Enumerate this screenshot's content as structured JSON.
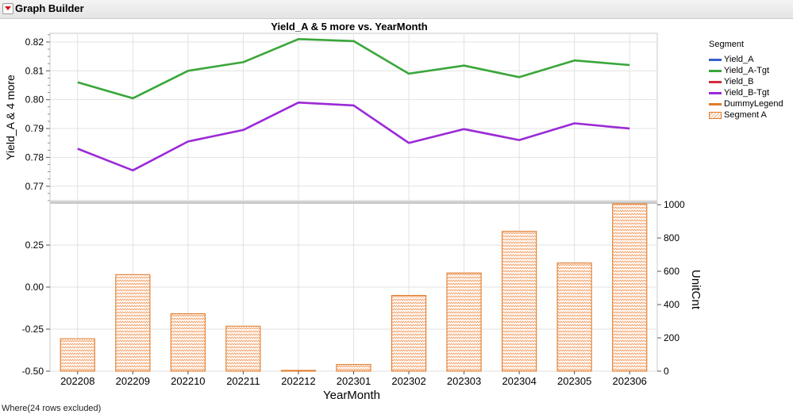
{
  "window": {
    "title": "Graph Builder"
  },
  "footer": {
    "note": "Where(24 rows excluded)"
  },
  "legend": {
    "title": "Segment",
    "items": [
      {
        "label": "Yield_A",
        "color": "#3a5fcd",
        "kind": "line"
      },
      {
        "label": "Yield_A-Tgt",
        "color": "#3aa63a",
        "kind": "line"
      },
      {
        "label": "Yield_B",
        "color": "#d62a3e",
        "kind": "line"
      },
      {
        "label": "Yield_B-Tgt",
        "color": "#9b2ad6",
        "kind": "line"
      },
      {
        "label": "DummyLegend",
        "color": "#e07b2a",
        "kind": "line"
      },
      {
        "label": "Segment A",
        "color": "#e07b2a",
        "kind": "patch"
      }
    ]
  },
  "chart_data": [
    {
      "type": "line",
      "title": "Yield_A & 5 more vs. YearMonth",
      "ylabel": "Yield_A & 4 more",
      "categories": [
        "202208",
        "202209",
        "202210",
        "202211",
        "202212",
        "202301",
        "202302",
        "202303",
        "202304",
        "202305",
        "202306"
      ],
      "ylim": [
        0.765,
        0.823
      ],
      "yticks": [
        "0.82",
        "0.81",
        "0.80",
        "0.79",
        "0.78",
        "0.77"
      ],
      "series": [
        {
          "name": "Yield_A-Tgt",
          "color": "#3aa63a",
          "values": [
            0.806,
            0.8005,
            0.81,
            0.813,
            0.821,
            0.8203,
            0.809,
            0.8118,
            0.8078,
            0.8136,
            0.812
          ]
        },
        {
          "name": "Yield_B-Tgt",
          "color": "#9b2ad6",
          "values": [
            0.783,
            0.7755,
            0.7855,
            0.7895,
            0.799,
            0.798,
            0.785,
            0.7898,
            0.786,
            0.7918,
            0.79
          ]
        }
      ],
      "grid": true
    },
    {
      "type": "bar",
      "xlabel": "YearMonth",
      "categories": [
        "202208",
        "202209",
        "202210",
        "202211",
        "202212",
        "202301",
        "202302",
        "202303",
        "202304",
        "202305",
        "202306"
      ],
      "series": [
        {
          "name": "Segment A",
          "color": "#e07b2a",
          "values": [
            195,
            580,
            345,
            270,
            5,
            40,
            455,
            590,
            840,
            650,
            1005
          ]
        }
      ],
      "y2label": "UnitCnt",
      "y2lim": [
        0,
        1010
      ],
      "y2ticks": [
        "1000",
        "800",
        "600",
        "400",
        "200",
        "0"
      ],
      "yticks_left": [
        "0.25",
        "0.00",
        "-0.25",
        "-0.50"
      ],
      "ylim_left": [
        -0.5,
        0.5
      ],
      "grid": true
    }
  ]
}
